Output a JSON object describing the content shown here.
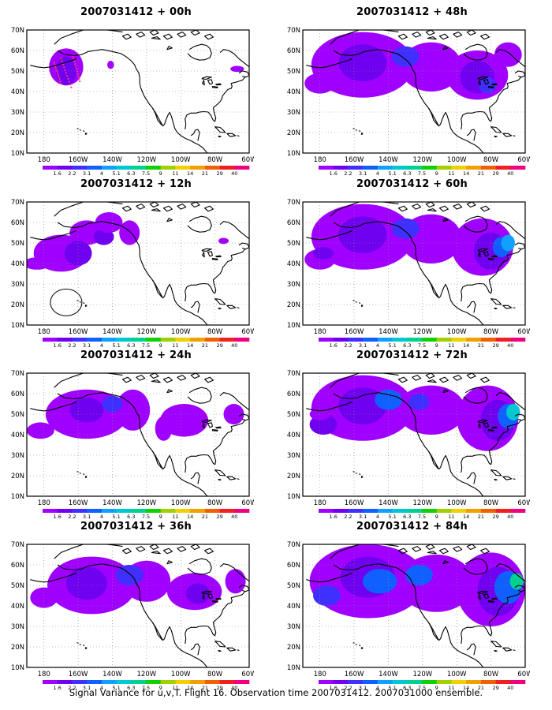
{
  "figure": {
    "caption": "Signal Variance for u,v,T. Flight 16. Observation time 2007031412. 2007031000 ensemble."
  },
  "map": {
    "lat_labels": [
      "70N",
      "60N",
      "50N",
      "40N",
      "30N",
      "20N",
      "10N"
    ],
    "lon_labels": [
      "180",
      "160W",
      "140W",
      "120W",
      "100W",
      "80W",
      "60W"
    ]
  },
  "colorbar": {
    "labels": [
      "1.6",
      "2.2",
      "3.1",
      "4",
      "5.1",
      "6.3",
      "7.5",
      "9",
      "11",
      "14",
      "21",
      "29",
      "40"
    ],
    "colors": [
      "#a000ff",
      "#7000f0",
      "#4030ff",
      "#1060ff",
      "#10a0ff",
      "#00c8d0",
      "#00d090",
      "#10d000",
      "#a0d000",
      "#f0d000",
      "#f0a000",
      "#f06000",
      "#f02020",
      "#f00080"
    ]
  },
  "panels": [
    {
      "title": "2007031412 + 00h",
      "lead": 0
    },
    {
      "title": "2007031412 + 12h",
      "lead": 12
    },
    {
      "title": "2007031412 + 24h",
      "lead": 24
    },
    {
      "title": "2007031412 + 36h",
      "lead": 36
    },
    {
      "title": "2007031412 + 48h",
      "lead": 48
    },
    {
      "title": "2007031412 + 60h",
      "lead": 60
    },
    {
      "title": "2007031412 + 72h",
      "lead": 72
    },
    {
      "title": "2007031412 + 84h",
      "lead": 84
    }
  ]
}
